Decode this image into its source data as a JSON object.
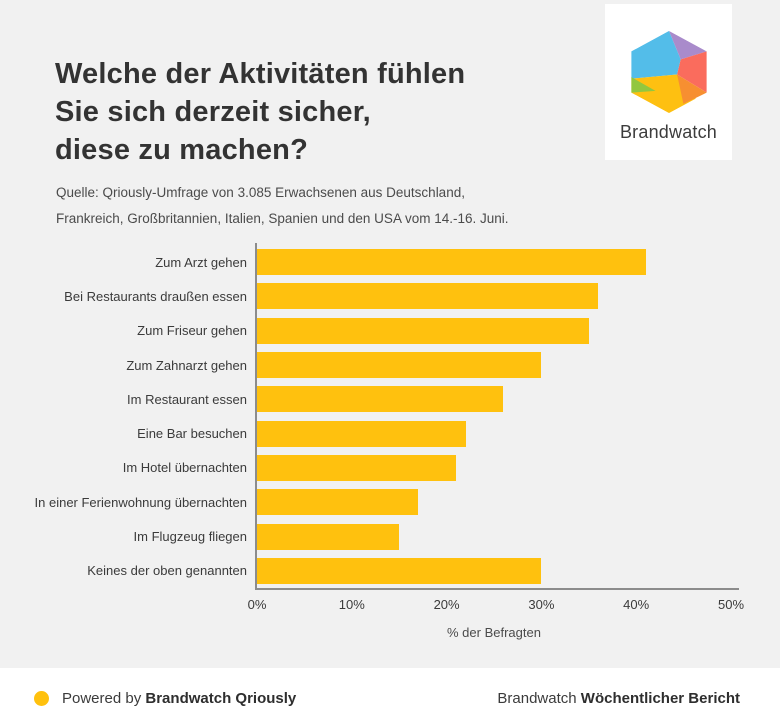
{
  "colors": {
    "background": "#F1F1F1",
    "card_background": "#FFFFFF",
    "bar": "#FFC10E",
    "axis": "#8C8C8C",
    "title_text": "#333333",
    "body_text": "#4B4B4B",
    "logo_segments": {
      "blue": "#53BDE9",
      "purple": "#A98BCB",
      "coral": "#FA6C5D",
      "orange": "#F78F31",
      "yellow": "#FEC011",
      "green": "#92C73F"
    }
  },
  "logo": {
    "brand": "Brandwatch"
  },
  "header": {
    "title": "Welche der Aktivitäten fühlen\nSie sich derzeit sicher,\ndiese zu machen?",
    "source": "Quelle: Qriously-Umfrage von 3.085 Erwachsenen aus Deutschland,\nFrankreich, Großbritannien, Italien, Spanien und den USA vom 14.-16. Juni."
  },
  "chart_data": {
    "type": "bar",
    "orientation": "horizontal",
    "title": "Welche der Aktivitäten fühlen Sie sich derzeit sicher, diese zu machen?",
    "categories": [
      "Zum Arzt gehen",
      "Bei Restaurants draußen essen",
      "Zum Friseur gehen",
      "Zum Zahnarzt gehen",
      "Im Restaurant essen",
      "Eine Bar besuchen",
      "Im Hotel übernachten",
      "In einer Ferienwohnung übernachten",
      "Im Flugzeug fliegen",
      "Keines der oben genannten"
    ],
    "values": [
      41,
      36,
      35,
      30,
      26,
      22,
      21,
      17,
      15,
      30
    ],
    "unit": "%",
    "xlabel": "% der Befragten",
    "xlim": [
      0,
      50
    ],
    "x_ticks": [
      "0%",
      "10%",
      "20%",
      "30%",
      "40%",
      "50%"
    ],
    "grid": false,
    "legend": false,
    "bar_color": "#FFC10E"
  },
  "footer": {
    "powered_by_prefix": "Powered by ",
    "powered_by_bold": "Brandwatch Qriously",
    "report_prefix": "Brandwatch ",
    "report_bold": "Wöchentlicher Bericht"
  }
}
